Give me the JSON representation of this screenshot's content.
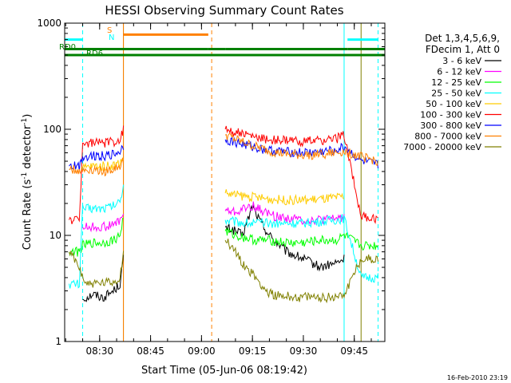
{
  "chart_data": {
    "type": "line",
    "title": "HESSI Observing Summary Count Rates",
    "xlabel": "Start Time (05-Jun-06 08:19:42)",
    "ylabel": "Count Rate (s⁻¹ detector⁻¹)",
    "ylabel_main": "Count Rate (s",
    "ylabel_sup1": "-1",
    "ylabel_mid": " detector",
    "ylabel_sup2": "-1",
    "ylabel_end": ")",
    "y_scale": "log",
    "ylim": [
      1,
      1000
    ],
    "xlim": [
      "08:19:42",
      "09:54:00"
    ],
    "x_ticks": [
      "08:30",
      "08:45",
      "09:00",
      "09:15",
      "09:30",
      "09:45"
    ],
    "y_ticks": [
      "1",
      "10",
      "100",
      "1000"
    ],
    "footer_date": "16-Feb-2010 23:19",
    "legend": {
      "position": "top-right",
      "header": [
        "Det 1,3,4,5,6,9,",
        "FDecim 1, Att 0"
      ]
    },
    "series": [
      {
        "name": "3 - 6 keV",
        "color": "#000000",
        "points": [
          [
            "08:25",
            2.5
          ],
          [
            "08:28",
            2.8
          ],
          [
            "08:31",
            2.6
          ],
          [
            "08:34",
            3.0
          ],
          [
            "08:36",
            3.5
          ],
          [
            "08:37",
            6
          ],
          [
            "09:03",
            null
          ],
          [
            "09:07",
            12
          ],
          [
            "09:10",
            11
          ],
          [
            "09:12",
            10
          ],
          [
            "09:14",
            15
          ],
          [
            "09:15",
            19
          ],
          [
            "09:17",
            14
          ],
          [
            "09:20",
            10
          ],
          [
            "09:25",
            7
          ],
          [
            "09:30",
            6
          ],
          [
            "09:35",
            5
          ],
          [
            "09:40",
            5.5
          ],
          [
            "09:42",
            6
          ]
        ]
      },
      {
        "name": "6 - 12 keV",
        "color": "#ff00ff",
        "points": [
          [
            "08:25",
            12
          ],
          [
            "08:28",
            12
          ],
          [
            "08:31",
            12
          ],
          [
            "08:34",
            12.5
          ],
          [
            "08:36",
            14
          ],
          [
            "08:37",
            16
          ],
          [
            "09:03",
            null
          ],
          [
            "09:07",
            17
          ],
          [
            "09:10",
            16.5
          ],
          [
            "09:13",
            18
          ],
          [
            "09:15",
            19
          ],
          [
            "09:18",
            17
          ],
          [
            "09:22",
            15
          ],
          [
            "09:30",
            14
          ],
          [
            "09:37",
            14
          ],
          [
            "09:42",
            15
          ]
        ]
      },
      {
        "name": "12 - 25 keV",
        "color": "#00ff00",
        "points": [
          [
            "08:21",
            7
          ],
          [
            "08:24",
            7
          ],
          [
            "08:25",
            8
          ],
          [
            "08:28",
            8.5
          ],
          [
            "08:31",
            8.5
          ],
          [
            "08:34",
            9
          ],
          [
            "08:36",
            10
          ],
          [
            "08:37",
            15
          ],
          [
            "09:03",
            null
          ],
          [
            "09:07",
            11
          ],
          [
            "09:10",
            10
          ],
          [
            "09:13",
            9.5
          ],
          [
            "09:16",
            9
          ],
          [
            "09:20",
            9
          ],
          [
            "09:25",
            8.5
          ],
          [
            "09:30",
            8.5
          ],
          [
            "09:35",
            9
          ],
          [
            "09:40",
            9
          ],
          [
            "09:42",
            10
          ],
          [
            "09:47",
            8
          ],
          [
            "09:52",
            8
          ]
        ]
      },
      {
        "name": "25 - 50 keV",
        "color": "#00ffff",
        "points": [
          [
            "08:21",
            3.5
          ],
          [
            "08:24",
            3.5
          ],
          [
            "08:25",
            18
          ],
          [
            "08:28",
            18
          ],
          [
            "08:31",
            18
          ],
          [
            "08:34",
            19
          ],
          [
            "08:36",
            21
          ],
          [
            "08:37",
            30
          ],
          [
            "09:03",
            null
          ],
          [
            "09:07",
            14
          ],
          [
            "09:10",
            13.5
          ],
          [
            "09:15",
            13
          ],
          [
            "09:20",
            13
          ],
          [
            "09:25",
            13
          ],
          [
            "09:30",
            13
          ],
          [
            "09:35",
            13.5
          ],
          [
            "09:40",
            14
          ],
          [
            "09:42",
            14.5
          ],
          [
            "09:47",
            4
          ],
          [
            "09:52",
            4
          ]
        ]
      },
      {
        "name": "50 - 100 keV",
        "color": "#ffcc00",
        "points": [
          [
            "08:25",
            43
          ],
          [
            "08:28",
            45
          ],
          [
            "08:31",
            45
          ],
          [
            "08:34",
            46
          ],
          [
            "08:36",
            48
          ],
          [
            "08:37",
            55
          ],
          [
            "09:03",
            null
          ],
          [
            "09:07",
            25
          ],
          [
            "09:10",
            24
          ],
          [
            "09:15",
            23
          ],
          [
            "09:20",
            22
          ],
          [
            "09:25",
            21.5
          ],
          [
            "09:30",
            21.5
          ],
          [
            "09:35",
            22
          ],
          [
            "09:40",
            22.5
          ],
          [
            "09:42",
            23
          ]
        ]
      },
      {
        "name": "100 - 300 keV",
        "color": "#ff0000",
        "points": [
          [
            "08:21",
            14
          ],
          [
            "08:24",
            14
          ],
          [
            "08:25",
            72
          ],
          [
            "08:28",
            75
          ],
          [
            "08:31",
            74
          ],
          [
            "08:34",
            76
          ],
          [
            "08:36",
            80
          ],
          [
            "08:37",
            100
          ],
          [
            "09:03",
            null
          ],
          [
            "09:07",
            100
          ],
          [
            "09:10",
            95
          ],
          [
            "09:15",
            85
          ],
          [
            "09:20",
            80
          ],
          [
            "09:25",
            78
          ],
          [
            "09:30",
            77
          ],
          [
            "09:35",
            78
          ],
          [
            "09:40",
            82
          ],
          [
            "09:42",
            90
          ],
          [
            "09:47",
            15
          ],
          [
            "09:52",
            14
          ]
        ]
      },
      {
        "name": "300 - 800 keV",
        "color": "#0000ff",
        "points": [
          [
            "08:21",
            45
          ],
          [
            "08:24",
            45
          ],
          [
            "08:25",
            55
          ],
          [
            "08:28",
            57
          ],
          [
            "08:31",
            56
          ],
          [
            "08:34",
            58
          ],
          [
            "08:36",
            62
          ],
          [
            "08:37",
            70
          ],
          [
            "09:03",
            null
          ],
          [
            "09:07",
            80
          ],
          [
            "09:10",
            75
          ],
          [
            "09:15",
            68
          ],
          [
            "09:20",
            63
          ],
          [
            "09:25",
            61
          ],
          [
            "09:30",
            60
          ],
          [
            "09:35",
            61
          ],
          [
            "09:40",
            64
          ],
          [
            "09:42",
            68
          ],
          [
            "09:47",
            50
          ],
          [
            "09:52",
            46
          ]
        ]
      },
      {
        "name": "800 - 7000 keV",
        "color": "#ff8000",
        "points": [
          [
            "08:21",
            42
          ],
          [
            "08:24",
            41
          ],
          [
            "08:25",
            41
          ],
          [
            "08:28",
            42
          ],
          [
            "08:31",
            40
          ],
          [
            "08:34",
            42
          ],
          [
            "08:36",
            45
          ],
          [
            "08:37",
            50
          ],
          [
            "09:03",
            null
          ],
          [
            "09:07",
            88
          ],
          [
            "09:10",
            80
          ],
          [
            "09:15",
            70
          ],
          [
            "09:20",
            62
          ],
          [
            "09:25",
            58
          ],
          [
            "09:30",
            57
          ],
          [
            "09:35",
            58
          ],
          [
            "09:40",
            60
          ],
          [
            "09:42",
            62
          ],
          [
            "09:47",
            55
          ],
          [
            "09:52",
            50
          ]
        ]
      },
      {
        "name": "7000 - 20000 keV",
        "color": "#808000",
        "points": [
          [
            "08:21",
            7
          ],
          [
            "08:24",
            5
          ],
          [
            "08:26",
            3.5
          ],
          [
            "08:30",
            3.5
          ],
          [
            "08:34",
            3.6
          ],
          [
            "08:36",
            4
          ],
          [
            "08:37",
            7
          ],
          [
            "09:03",
            null
          ],
          [
            "09:07",
            9
          ],
          [
            "09:10",
            7
          ],
          [
            "09:13",
            5
          ],
          [
            "09:16",
            4
          ],
          [
            "09:19",
            3
          ],
          [
            "09:22",
            2.7
          ],
          [
            "09:30",
            2.6
          ],
          [
            "09:38",
            2.6
          ],
          [
            "09:42",
            2.8
          ],
          [
            "09:47",
            6
          ],
          [
            "09:52",
            6
          ]
        ]
      }
    ],
    "flag_bars": [
      {
        "label": "S",
        "color": "#ff8000",
        "y": 780,
        "segments": [
          [
            "08:37",
            "09:02"
          ]
        ]
      },
      {
        "label": "N",
        "color": "#00ffff",
        "y": 700,
        "segments": [
          [
            "08:19:42",
            "08:25"
          ],
          [
            "09:43",
            "09:52"
          ]
        ]
      },
      {
        "label": "RD0",
        "color": "#008000",
        "y": 570,
        "segments": [
          [
            "08:19:42",
            "09:02"
          ],
          [
            "09:02",
            "09:07"
          ],
          [
            "09:07",
            "09:43"
          ],
          [
            "09:43",
            "09:54"
          ]
        ]
      },
      {
        "label": "RD6",
        "color": "#008000",
        "y": 500,
        "segments": [
          [
            "08:19:42",
            "09:54"
          ]
        ]
      }
    ],
    "vertical_markers": [
      {
        "x": "08:25",
        "color": "#00ffff",
        "style": "dashed"
      },
      {
        "x": "08:37",
        "color": "#808000",
        "style": "solid"
      },
      {
        "x": "08:37",
        "color": "#ff8000",
        "style": "solid"
      },
      {
        "x": "09:03",
        "color": "#ff8000",
        "style": "dashed"
      },
      {
        "x": "09:42",
        "color": "#00ffff",
        "style": "solid"
      },
      {
        "x": "09:47",
        "color": "#808000",
        "style": "solid"
      },
      {
        "x": "09:52",
        "color": "#00ffff",
        "style": "dashed"
      }
    ]
  }
}
